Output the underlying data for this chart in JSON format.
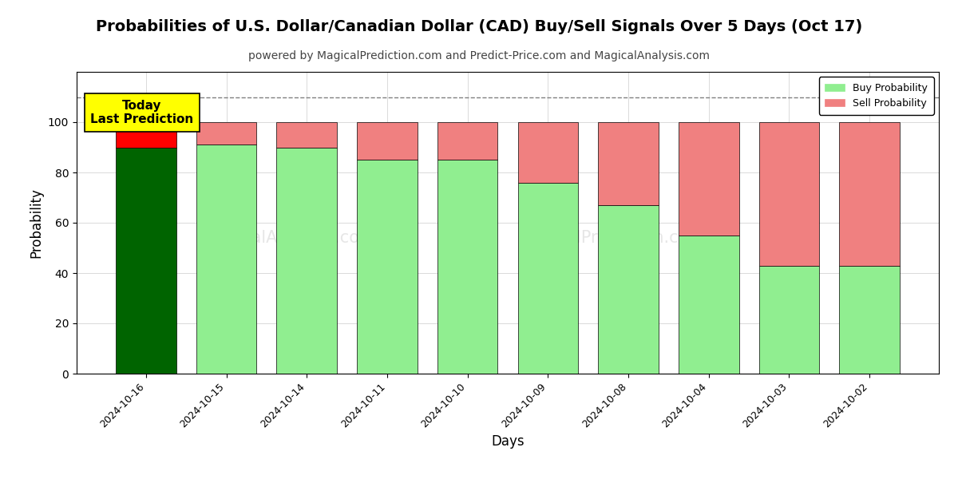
{
  "title": "Probabilities of U.S. Dollar/Canadian Dollar (CAD) Buy/Sell Signals Over 5 Days (Oct 17)",
  "subtitle": "powered by MagicalPrediction.com and Predict-Price.com and MagicalAnalysis.com",
  "xlabel": "Days",
  "ylabel": "Probability",
  "categories": [
    "2024-10-16",
    "2024-10-15",
    "2024-10-14",
    "2024-10-11",
    "2024-10-10",
    "2024-10-09",
    "2024-10-08",
    "2024-10-04",
    "2024-10-03",
    "2024-10-02"
  ],
  "buy_values": [
    90,
    91,
    90,
    85,
    85,
    76,
    67,
    55,
    43,
    43
  ],
  "sell_values": [
    10,
    9,
    10,
    15,
    15,
    24,
    33,
    45,
    57,
    57
  ],
  "buy_colors": [
    "#006400",
    "#90EE90",
    "#90EE90",
    "#90EE90",
    "#90EE90",
    "#90EE90",
    "#90EE90",
    "#90EE90",
    "#90EE90",
    "#90EE90"
  ],
  "sell_colors": [
    "#FF0000",
    "#F08080",
    "#F08080",
    "#F08080",
    "#F08080",
    "#F08080",
    "#F08080",
    "#F08080",
    "#F08080",
    "#F08080"
  ],
  "today_annotation_text": "Today\nLast Prediction",
  "today_annotation_bg": "#FFFF00",
  "dashed_line_y": 110,
  "ylim": [
    0,
    120
  ],
  "yticks": [
    0,
    20,
    40,
    60,
    80,
    100
  ],
  "legend_buy_color": "#90EE90",
  "legend_sell_color": "#F08080",
  "watermark_line1": "MagicalAnalysis.com",
  "watermark_line2": "MagicalPrediction.com",
  "watermark_line3": "calAnalysis.com",
  "watermark_line4": "MagicalPrediction.com",
  "background_color": "#ffffff",
  "grid_color": "#cccccc",
  "bar_edge_color": "#000000",
  "title_fontsize": 14,
  "subtitle_fontsize": 10,
  "axis_label_fontsize": 12
}
